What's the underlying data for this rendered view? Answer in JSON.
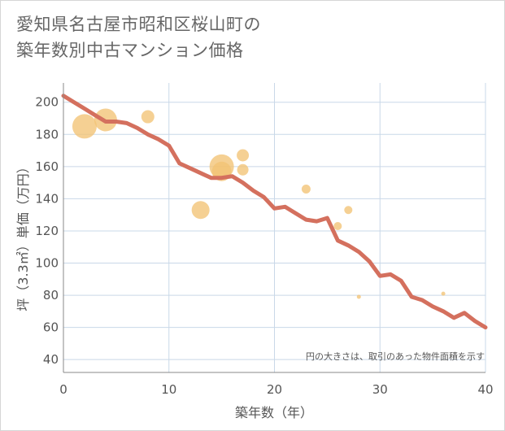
{
  "title_lines": [
    "愛知県名古屋市昭和区桜山町の",
    "築年数別中古マンション価格"
  ],
  "chart_data": {
    "type": "scatter+line",
    "xlabel": "築年数（年）",
    "ylabel": "坪（3.3㎡）単価（万円）",
    "xlim": [
      0,
      40
    ],
    "ylim": [
      32,
      212
    ],
    "xticks": [
      0,
      10,
      20,
      30,
      40
    ],
    "yticks": [
      40,
      60,
      80,
      100,
      120,
      140,
      160,
      180,
      200
    ],
    "grid": true,
    "note": "円の大きさは、取引のあった物件面積を示す",
    "colors": {
      "line": "#d4705e",
      "bubble": "#f2c374",
      "grid": "#c9d8e8",
      "axis": "#888888"
    },
    "line": {
      "x": [
        0,
        1,
        2,
        3,
        4,
        5,
        6,
        7,
        8,
        9,
        10,
        11,
        12,
        13,
        14,
        15,
        16,
        17,
        18,
        19,
        20,
        21,
        22,
        23,
        24,
        25,
        26,
        27,
        28,
        29,
        30,
        31,
        32,
        33,
        34,
        35,
        36,
        37,
        38,
        39,
        40
      ],
      "y": [
        204,
        200,
        196,
        192,
        188,
        188,
        187,
        184,
        180,
        177,
        173,
        162,
        159,
        156,
        153,
        153,
        154,
        150,
        145,
        141,
        134,
        135,
        131,
        127,
        126,
        128,
        114,
        111,
        107,
        101,
        92,
        93,
        89,
        79,
        77,
        73,
        70,
        66,
        69,
        64,
        60
      ]
    },
    "bubbles": [
      {
        "x": 2,
        "y": 185,
        "size": 15
      },
      {
        "x": 4,
        "y": 189,
        "size": 14
      },
      {
        "x": 8,
        "y": 191,
        "size": 8
      },
      {
        "x": 13,
        "y": 133,
        "size": 11
      },
      {
        "x": 15,
        "y": 160,
        "size": 15
      },
      {
        "x": 15,
        "y": 157,
        "size": 12
      },
      {
        "x": 17,
        "y": 167,
        "size": 7.5
      },
      {
        "x": 17,
        "y": 158,
        "size": 7
      },
      {
        "x": 23,
        "y": 146,
        "size": 5.5
      },
      {
        "x": 26,
        "y": 123,
        "size": 5
      },
      {
        "x": 27,
        "y": 133,
        "size": 5
      },
      {
        "x": 28,
        "y": 79,
        "size": 2.5
      },
      {
        "x": 36,
        "y": 81,
        "size": 2.5
      }
    ]
  }
}
